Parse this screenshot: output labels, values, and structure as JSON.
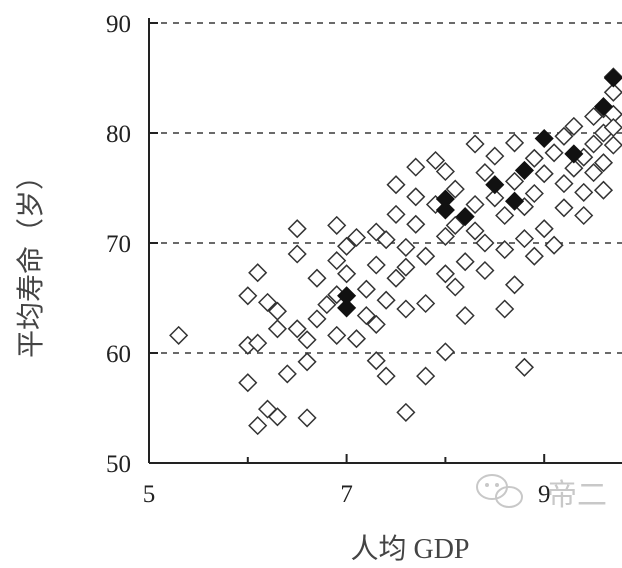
{
  "chart_data": {
    "type": "scatter",
    "title": "",
    "xlabel": "人均 GDP",
    "ylabel": "平均寿命（岁）",
    "xlim": [
      5,
      9.7
    ],
    "ylim": [
      50,
      90
    ],
    "x_ticks": [
      "5",
      "7",
      "9"
    ],
    "y_ticks": [
      "50",
      "60",
      "70",
      "80",
      "90"
    ],
    "grid": "horizontal dashed",
    "marker": "hollow diamond",
    "points": [
      {
        "x": 5.3,
        "y": 61.6
      },
      {
        "x": 6.0,
        "y": 57.3
      },
      {
        "x": 6.0,
        "y": 60.7
      },
      {
        "x": 6.1,
        "y": 53.4
      },
      {
        "x": 6.1,
        "y": 60.9
      },
      {
        "x": 6.2,
        "y": 54.9
      },
      {
        "x": 6.3,
        "y": 54.2
      },
      {
        "x": 6.1,
        "y": 67.3
      },
      {
        "x": 6.0,
        "y": 65.2
      },
      {
        "x": 6.2,
        "y": 64.6
      },
      {
        "x": 6.3,
        "y": 63.8
      },
      {
        "x": 6.4,
        "y": 58.1
      },
      {
        "x": 6.5,
        "y": 62.2
      },
      {
        "x": 6.6,
        "y": 54.1
      },
      {
        "x": 6.6,
        "y": 59.2
      },
      {
        "x": 6.6,
        "y": 61.2
      },
      {
        "x": 6.7,
        "y": 63.1
      },
      {
        "x": 6.7,
        "y": 66.8
      },
      {
        "x": 6.5,
        "y": 71.3
      },
      {
        "x": 6.5,
        "y": 69.0
      },
      {
        "x": 6.8,
        "y": 64.4
      },
      {
        "x": 6.9,
        "y": 65.3
      },
      {
        "x": 6.9,
        "y": 61.6
      },
      {
        "x": 6.9,
        "y": 71.6
      },
      {
        "x": 7.0,
        "y": 67.2
      },
      {
        "x": 7.0,
        "y": 69.7
      },
      {
        "x": 7.1,
        "y": 61.3
      },
      {
        "x": 7.2,
        "y": 63.4
      },
      {
        "x": 7.2,
        "y": 65.8
      },
      {
        "x": 7.3,
        "y": 68.0
      },
      {
        "x": 7.3,
        "y": 71.0
      },
      {
        "x": 7.3,
        "y": 59.3
      },
      {
        "x": 7.3,
        "y": 62.6
      },
      {
        "x": 7.4,
        "y": 57.9
      },
      {
        "x": 7.4,
        "y": 64.8
      },
      {
        "x": 7.4,
        "y": 70.3
      },
      {
        "x": 7.5,
        "y": 72.6
      },
      {
        "x": 7.5,
        "y": 75.3
      },
      {
        "x": 7.5,
        "y": 66.8
      },
      {
        "x": 7.6,
        "y": 54.6
      },
      {
        "x": 7.6,
        "y": 64.0
      },
      {
        "x": 7.6,
        "y": 69.6
      },
      {
        "x": 7.7,
        "y": 76.9
      },
      {
        "x": 7.7,
        "y": 74.2
      },
      {
        "x": 7.7,
        "y": 71.7
      },
      {
        "x": 7.8,
        "y": 64.5
      },
      {
        "x": 7.8,
        "y": 57.9
      },
      {
        "x": 7.8,
        "y": 68.8
      },
      {
        "x": 7.9,
        "y": 77.5
      },
      {
        "x": 7.9,
        "y": 73.5
      },
      {
        "x": 8.0,
        "y": 67.2
      },
      {
        "x": 8.0,
        "y": 70.6
      },
      {
        "x": 8.0,
        "y": 76.5
      },
      {
        "x": 8.0,
        "y": 60.1
      },
      {
        "x": 8.1,
        "y": 74.9
      },
      {
        "x": 8.1,
        "y": 71.6
      },
      {
        "x": 8.2,
        "y": 68.3
      },
      {
        "x": 8.2,
        "y": 63.4
      },
      {
        "x": 8.3,
        "y": 73.5
      },
      {
        "x": 8.3,
        "y": 79.0
      },
      {
        "x": 8.3,
        "y": 71.1
      },
      {
        "x": 8.4,
        "y": 67.5
      },
      {
        "x": 8.4,
        "y": 76.4
      },
      {
        "x": 8.5,
        "y": 77.9
      },
      {
        "x": 8.5,
        "y": 74.1
      },
      {
        "x": 8.6,
        "y": 64.0
      },
      {
        "x": 8.6,
        "y": 69.4
      },
      {
        "x": 8.6,
        "y": 72.5
      },
      {
        "x": 8.7,
        "y": 75.6
      },
      {
        "x": 8.7,
        "y": 79.1
      },
      {
        "x": 8.7,
        "y": 66.2
      },
      {
        "x": 8.8,
        "y": 58.7
      },
      {
        "x": 8.8,
        "y": 70.4
      },
      {
        "x": 8.8,
        "y": 73.3
      },
      {
        "x": 8.9,
        "y": 77.7
      },
      {
        "x": 8.9,
        "y": 74.5
      },
      {
        "x": 9.0,
        "y": 76.3
      },
      {
        "x": 9.0,
        "y": 71.3
      },
      {
        "x": 9.1,
        "y": 78.2
      },
      {
        "x": 9.1,
        "y": 69.8
      },
      {
        "x": 9.2,
        "y": 75.4
      },
      {
        "x": 9.2,
        "y": 79.7
      },
      {
        "x": 9.2,
        "y": 73.2
      },
      {
        "x": 9.3,
        "y": 76.8
      },
      {
        "x": 9.3,
        "y": 80.6
      },
      {
        "x": 9.4,
        "y": 77.8
      },
      {
        "x": 9.4,
        "y": 74.6
      },
      {
        "x": 9.5,
        "y": 79.0
      },
      {
        "x": 9.5,
        "y": 81.5
      },
      {
        "x": 9.5,
        "y": 76.4
      },
      {
        "x": 9.6,
        "y": 80.0
      },
      {
        "x": 9.6,
        "y": 82.2
      },
      {
        "x": 9.6,
        "y": 77.3
      },
      {
        "x": 9.7,
        "y": 78.9
      },
      {
        "x": 9.7,
        "y": 81.7
      },
      {
        "x": 9.7,
        "y": 83.7
      },
      {
        "x": 9.7,
        "y": 85.1
      },
      {
        "x": 6.3,
        "y": 62.2
      },
      {
        "x": 6.9,
        "y": 68.4
      },
      {
        "x": 7.1,
        "y": 70.5
      },
      {
        "x": 7.6,
        "y": 67.8
      },
      {
        "x": 8.1,
        "y": 66.0
      },
      {
        "x": 8.4,
        "y": 70.0
      },
      {
        "x": 8.9,
        "y": 68.8
      },
      {
        "x": 9.4,
        "y": 72.5
      },
      {
        "x": 9.6,
        "y": 74.8
      },
      {
        "x": 9.7,
        "y": 80.5
      }
    ],
    "highlighted_points": [
      {
        "x": 7.0,
        "y": 64.1
      },
      {
        "x": 7.0,
        "y": 65.2
      },
      {
        "x": 8.0,
        "y": 73.0
      },
      {
        "x": 8.0,
        "y": 74.0
      },
      {
        "x": 8.2,
        "y": 72.4
      },
      {
        "x": 8.5,
        "y": 75.3
      },
      {
        "x": 8.7,
        "y": 73.8
      },
      {
        "x": 8.8,
        "y": 76.6
      },
      {
        "x": 9.0,
        "y": 79.5
      },
      {
        "x": 9.3,
        "y": 78.1
      },
      {
        "x": 9.6,
        "y": 82.4
      },
      {
        "x": 9.7,
        "y": 85.0
      }
    ]
  },
  "watermark": {
    "text": "帝二",
    "icon": "wechat-icon"
  }
}
